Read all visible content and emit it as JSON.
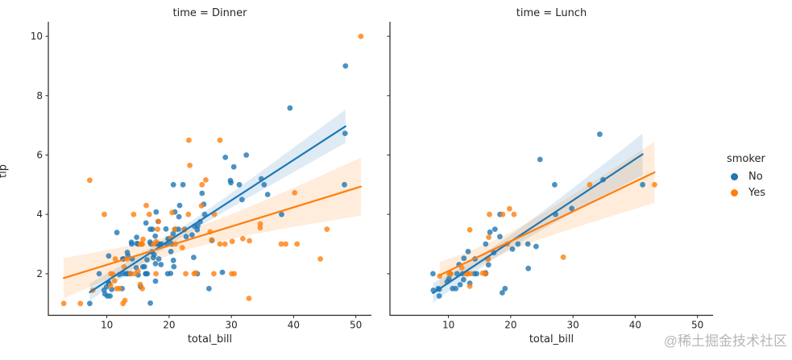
{
  "figure": {
    "background": "#ffffff",
    "text_color": "#262626",
    "spine_color": "#262626"
  },
  "legend": {
    "title": "smoker",
    "position": "right",
    "entries": [
      {
        "label": "No",
        "color": "#1f77b4"
      },
      {
        "label": "Yes",
        "color": "#ff7f0e"
      }
    ]
  },
  "watermark": {
    "text": "@稀土掘金技术社区",
    "color": "#b6b6b6"
  },
  "chart_data": [
    {
      "type": "scatter",
      "title": "time = Dinner",
      "xlabel": "total_bill",
      "ylabel": "tip",
      "xlim": [
        0.6,
        52.5
      ],
      "ylim": [
        0.6,
        10.49
      ],
      "xticks": [
        10,
        20,
        30,
        40,
        50
      ],
      "yticks": [
        2,
        4,
        6,
        8,
        10
      ],
      "show_ytick_labels": true,
      "grid": false,
      "regression": {
        "fit": "linear",
        "ci": 95
      },
      "series": [
        {
          "name": "No",
          "color": "#1f77b4",
          "points": [
            [
              16.99,
              1.01
            ],
            [
              10.34,
              1.66
            ],
            [
              21.01,
              3.5
            ],
            [
              23.68,
              3.31
            ],
            [
              24.59,
              3.61
            ],
            [
              25.29,
              4.71
            ],
            [
              8.77,
              2
            ],
            [
              26.88,
              3.12
            ],
            [
              15.04,
              1.96
            ],
            [
              14.78,
              3.23
            ],
            [
              10.27,
              1.71
            ],
            [
              35.26,
              5
            ],
            [
              15.42,
              1.57
            ],
            [
              18.43,
              3
            ],
            [
              14.83,
              3.02
            ],
            [
              21.58,
              3.92
            ],
            [
              10.33,
              1.67
            ],
            [
              16.29,
              3.71
            ],
            [
              16.97,
              3.5
            ],
            [
              20.65,
              3.35
            ],
            [
              17.92,
              4.08
            ],
            [
              20.29,
              2.75
            ],
            [
              15.77,
              2.23
            ],
            [
              39.42,
              7.58
            ],
            [
              19.82,
              3.18
            ],
            [
              17.81,
              2.34
            ],
            [
              13.37,
              2
            ],
            [
              12.69,
              2
            ],
            [
              21.7,
              4.3
            ],
            [
              19.65,
              3
            ],
            [
              9.55,
              1.45
            ],
            [
              18.35,
              2.5
            ],
            [
              15.06,
              3
            ],
            [
              20.69,
              2.45
            ],
            [
              17.78,
              3.27
            ],
            [
              24.06,
              3.6
            ],
            [
              16.31,
              2
            ],
            [
              16.93,
              3.07
            ],
            [
              18.69,
              2.31
            ],
            [
              31.27,
              5
            ],
            [
              16.04,
              2.24
            ],
            [
              17.46,
              2.54
            ],
            [
              13.94,
              3.06
            ],
            [
              9.68,
              1.32
            ],
            [
              30.4,
              5.6
            ],
            [
              18.29,
              3
            ],
            [
              22.23,
              5
            ],
            [
              32.4,
              6
            ],
            [
              28.55,
              2.05
            ],
            [
              18.04,
              3
            ],
            [
              12.54,
              2.5
            ],
            [
              10.29,
              2.6
            ],
            [
              34.81,
              5.2
            ],
            [
              9.94,
              1.56
            ],
            [
              25.56,
              4.34
            ],
            [
              19.49,
              3.51
            ],
            [
              26.41,
              1.5
            ],
            [
              48.27,
              6.73
            ],
            [
              17.59,
              2.64
            ],
            [
              20.08,
              3.15
            ],
            [
              16.45,
              2.47
            ],
            [
              20.23,
              2.01
            ],
            [
              12.02,
              1.97
            ],
            [
              17.07,
              3
            ],
            [
              14.73,
              2.2
            ],
            [
              10.51,
              1.25
            ],
            [
              22.49,
              3.5
            ],
            [
              22.75,
              3.25
            ],
            [
              12.46,
              1.5
            ],
            [
              20.92,
              4.08
            ],
            [
              18.24,
              3.76
            ],
            [
              14,
              3
            ],
            [
              7.25,
              1
            ],
            [
              38.07,
              4
            ],
            [
              23.95,
              2.55
            ],
            [
              25.71,
              4
            ],
            [
              17.31,
              3.5
            ],
            [
              29.93,
              5.07
            ],
            [
              14.07,
              2.5
            ],
            [
              13.13,
              2
            ],
            [
              17.26,
              2.74
            ],
            [
              24.55,
              2
            ],
            [
              19.77,
              2
            ],
            [
              29.85,
              5.14
            ],
            [
              48.17,
              5
            ],
            [
              25,
              3.75
            ],
            [
              13.39,
              2.61
            ],
            [
              16.49,
              2
            ],
            [
              21.5,
              3.5
            ],
            [
              12.66,
              2.5
            ],
            [
              16.21,
              2
            ],
            [
              13.81,
              2
            ],
            [
              24.52,
              3.48
            ],
            [
              20.76,
              2.24
            ],
            [
              31.71,
              4.5
            ],
            [
              20.69,
              5
            ],
            [
              48.33,
              9
            ],
            [
              20.45,
              3
            ],
            [
              13.28,
              2.72
            ],
            [
              11.61,
              3.39
            ],
            [
              10.77,
              1.47
            ],
            [
              10.07,
              1.25
            ],
            [
              35.83,
              4.67
            ],
            [
              29.03,
              5.92
            ],
            [
              17.82,
              1.75
            ],
            [
              18.78,
              3
            ]
          ]
        },
        {
          "name": "Yes",
          "color": "#ff7f0e",
          "points": [
            [
              38.01,
              3
            ],
            [
              11.24,
              1.76
            ],
            [
              20.29,
              3.21
            ],
            [
              13.81,
              2
            ],
            [
              11.02,
              1.98
            ],
            [
              18.29,
              3.76
            ],
            [
              3.07,
              1
            ],
            [
              15.01,
              2.09
            ],
            [
              26.86,
              3.14
            ],
            [
              25.28,
              5
            ],
            [
              17.92,
              3.08
            ],
            [
              28.97,
              3
            ],
            [
              5.75,
              1
            ],
            [
              16.32,
              4.3
            ],
            [
              40.17,
              4.73
            ],
            [
              27.28,
              4
            ],
            [
              12.03,
              1.5
            ],
            [
              21.01,
              3
            ],
            [
              11.35,
              2.5
            ],
            [
              15.38,
              3
            ],
            [
              44.3,
              2.5
            ],
            [
              22.42,
              3.48
            ],
            [
              15.36,
              1.64
            ],
            [
              20.49,
              4.06
            ],
            [
              25.21,
              4.29
            ],
            [
              14.31,
              4
            ],
            [
              17.51,
              3
            ],
            [
              10.59,
              1.61
            ],
            [
              10.63,
              2
            ],
            [
              50.81,
              10
            ],
            [
              15.81,
              3.16
            ],
            [
              7.25,
              5.15
            ],
            [
              31.85,
              3.18
            ],
            [
              16.82,
              4
            ],
            [
              32.9,
              3.11
            ],
            [
              17.89,
              2
            ],
            [
              14.48,
              2
            ],
            [
              9.6,
              4
            ],
            [
              34.63,
              3.55
            ],
            [
              34.65,
              3.68
            ],
            [
              23.33,
              5.65
            ],
            [
              45.35,
              3.5
            ],
            [
              23.17,
              6.5
            ],
            [
              40.55,
              3
            ],
            [
              20.9,
              3.5
            ],
            [
              30.46,
              2
            ],
            [
              18.15,
              3.5
            ],
            [
              23.1,
              4
            ],
            [
              15.69,
              1.5
            ],
            [
              26.59,
              3.41
            ],
            [
              38.73,
              3
            ],
            [
              24.27,
              2.03
            ],
            [
              12.76,
              2.23
            ],
            [
              30.06,
              2
            ],
            [
              25.89,
              5.16
            ],
            [
              13.27,
              2.5
            ],
            [
              28.17,
              6.5
            ],
            [
              12.9,
              1.1
            ],
            [
              28.15,
              3
            ],
            [
              11.59,
              1.5
            ],
            [
              7.74,
              1.44
            ],
            [
              30.14,
              3.09
            ],
            [
              22.12,
              2.88
            ],
            [
              24.01,
              2
            ],
            [
              15.69,
              3
            ],
            [
              15.53,
              3
            ],
            [
              12.6,
              1
            ],
            [
              32.83,
              1.17
            ],
            [
              27.18,
              2
            ],
            [
              22.67,
              2
            ]
          ]
        }
      ]
    },
    {
      "type": "scatter",
      "title": "time = Lunch",
      "xlabel": "total_bill",
      "ylabel": "tip",
      "xlim": [
        0.6,
        52.5
      ],
      "ylim": [
        0.6,
        10.49
      ],
      "xticks": [
        10,
        20,
        30,
        40,
        50
      ],
      "yticks": [
        2,
        4,
        6,
        8,
        10
      ],
      "show_ytick_labels": false,
      "grid": false,
      "regression": {
        "fit": "linear",
        "ci": 95
      },
      "series": [
        {
          "name": "No",
          "color": "#1f77b4",
          "points": [
            [
              27.2,
              4
            ],
            [
              22.76,
              3
            ],
            [
              17.29,
              2.71
            ],
            [
              16.66,
              3.4
            ],
            [
              10.07,
              1.83
            ],
            [
              15.98,
              2.03
            ],
            [
              34.83,
              5.17
            ],
            [
              13.03,
              2
            ],
            [
              18.28,
              4
            ],
            [
              24.71,
              5.85
            ],
            [
              21.16,
              3
            ],
            [
              10.65,
              1.5
            ],
            [
              12.43,
              1.8
            ],
            [
              24.08,
              2.92
            ],
            [
              11.69,
              2.31
            ],
            [
              13.42,
              1.68
            ],
            [
              14.26,
              2.5
            ],
            [
              15.95,
              2
            ],
            [
              12.48,
              2.52
            ],
            [
              29.8,
              4.2
            ],
            [
              8.52,
              1.48
            ],
            [
              14.52,
              2
            ],
            [
              11.38,
              2
            ],
            [
              22.82,
              2.18
            ],
            [
              19.08,
              1.5
            ],
            [
              20.27,
              2.83
            ],
            [
              11.17,
              1.5
            ],
            [
              12.26,
              2
            ],
            [
              18.26,
              3.25
            ],
            [
              8.51,
              1.25
            ],
            [
              10.33,
              2
            ],
            [
              14.15,
              2
            ],
            [
              13.16,
              2.75
            ],
            [
              17.47,
              3.5
            ],
            [
              34.3,
              6.7
            ],
            [
              41.19,
              5
            ],
            [
              27.05,
              5
            ],
            [
              16.43,
              2.3
            ],
            [
              8.35,
              1.5
            ],
            [
              18.64,
              1.36
            ],
            [
              11.87,
              1.63
            ],
            [
              9.78,
              1.73
            ],
            [
              7.51,
              2
            ],
            [
              7.56,
              1.44
            ],
            [
              15.98,
              3
            ]
          ]
        },
        {
          "name": "Yes",
          "color": "#ff7f0e",
          "points": [
            [
              19.44,
              3
            ],
            [
              32.68,
              5
            ],
            [
              16,
              2
            ],
            [
              19.81,
              4.19
            ],
            [
              28.44,
              2.56
            ],
            [
              15.48,
              2.02
            ],
            [
              16.58,
              4
            ],
            [
              10.34,
              2
            ],
            [
              43.11,
              5
            ],
            [
              13,
              2
            ],
            [
              13.51,
              2
            ],
            [
              18.71,
              4
            ],
            [
              12.74,
              2.01
            ],
            [
              13,
              2
            ],
            [
              16.4,
              2.5
            ],
            [
              20.53,
              4
            ],
            [
              16.47,
              3.23
            ],
            [
              12.16,
              2.2
            ],
            [
              13.42,
              3.48
            ],
            [
              8.58,
              1.92
            ],
            [
              13.42,
              1.58
            ],
            [
              16.27,
              2.5
            ],
            [
              10.09,
              2
            ]
          ]
        }
      ]
    }
  ]
}
